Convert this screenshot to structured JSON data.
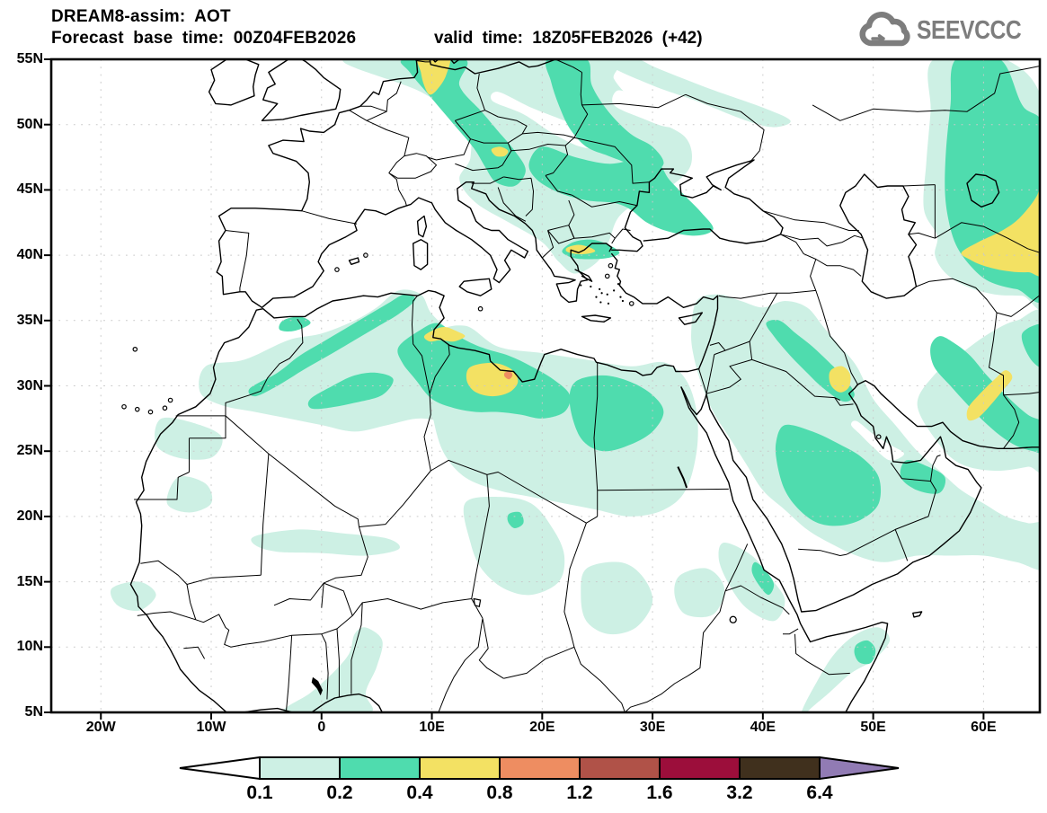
{
  "header": {
    "line1": "DREAM8-assim: AOT",
    "line2_left": "Forecast base time: 00Z04FEB2026",
    "line2_right": "valid time: 18Z05FEB2026 (+42)"
  },
  "logo": {
    "text": "SEEVCCC",
    "color": "#7d7d7d",
    "icon": "cloud-icon"
  },
  "axes": {
    "lat_ticks": [
      "55N",
      "50N",
      "45N",
      "40N",
      "35N",
      "30N",
      "25N",
      "20N",
      "15N",
      "10N",
      "5N"
    ],
    "lat_values": [
      55,
      50,
      45,
      40,
      35,
      30,
      25,
      20,
      15,
      10,
      5
    ],
    "lon_ticks": [
      "20W",
      "10W",
      "0",
      "10E",
      "20E",
      "30E",
      "40E",
      "50E",
      "60E"
    ],
    "lon_values": [
      -20,
      -10,
      0,
      10,
      20,
      30,
      40,
      50,
      60
    ]
  },
  "colorbar": {
    "tick_labels": [
      "0.1",
      "0.2",
      "0.4",
      "0.8",
      "1.2",
      "1.6",
      "3.2",
      "6.4"
    ],
    "cell_colors": [
      "#cdf0e4",
      "#4fdcae",
      "#f3e163",
      "#ee8d61",
      "#b05248",
      "#9c0e3b",
      "#40301d"
    ],
    "under_arrow_color": "#ffffff",
    "over_arrow_color": "#917bb4",
    "outline_color": "#000000"
  },
  "map": {
    "levels": [
      {
        "value": 0.1,
        "color": "#cdf0e4"
      },
      {
        "value": 0.2,
        "color": "#4fdcae"
      },
      {
        "value": 0.4,
        "color": "#f3e163"
      },
      {
        "value": 0.8,
        "color": "#ee8d61"
      }
    ],
    "gridline_color": "#c9c9c9",
    "coast_color": "#000000",
    "background_color": "#ffffff"
  },
  "chart_data": {
    "type": "contour-map",
    "title": "DREAM8-assim: AOT",
    "x_ticks": [
      "20W",
      "10W",
      "0",
      "10E",
      "20E",
      "30E",
      "40E",
      "50E",
      "60E"
    ],
    "y_ticks": [
      "5N",
      "10N",
      "15N",
      "20N",
      "25N",
      "30N",
      "35N",
      "40N",
      "45N",
      "50N",
      "55N"
    ],
    "legend_values": [
      0.1,
      0.2,
      0.4,
      0.8,
      1.2,
      1.6,
      3.2,
      6.4
    ],
    "legend_colors": [
      "#cdf0e4",
      "#4fdcae",
      "#f3e163",
      "#ee8d61",
      "#b05248",
      "#9c0e3b",
      "#40301d"
    ],
    "aot_maxima": [
      {
        "area": "Denmark / northern Germany",
        "level": "0.4-0.8"
      },
      {
        "area": "Eastern Austria (Vienna region)",
        "level": "0.4-0.8"
      },
      {
        "area": "Northern Greece (Thessaloniki)",
        "level": "0.4-0.8"
      },
      {
        "area": "Tunisian east coast",
        "level": "0.4-0.8"
      },
      {
        "area": "Northwest Libya",
        "level": "0.8-1.2"
      },
      {
        "area": "Kuwait / southern Iraq",
        "level": "0.4-0.8"
      },
      {
        "area": "Turkmenistan / Uzbekistan",
        "level": "0.4-0.8"
      },
      {
        "area": "Eastern Iran / Afghanistan border",
        "level": "0.4-0.8"
      }
    ]
  }
}
